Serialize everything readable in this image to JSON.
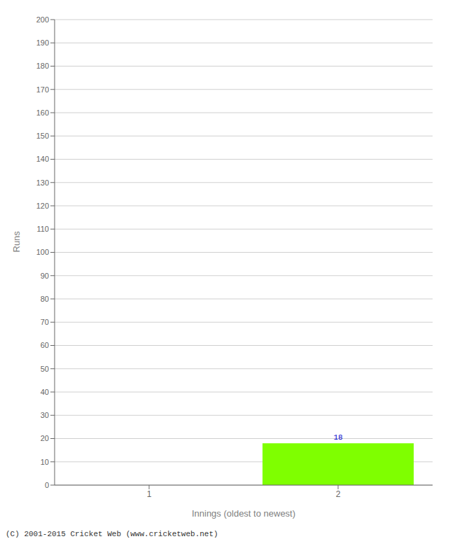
{
  "chart_data": {
    "type": "bar",
    "categories": [
      "1",
      "2"
    ],
    "values": [
      0,
      18
    ],
    "color": "#7fff00",
    "xlabel": "Innings (oldest to newest)",
    "ylabel": "Runs",
    "ylim": [
      0,
      200
    ],
    "yticks": [
      0,
      10,
      20,
      30,
      40,
      50,
      60,
      70,
      80,
      90,
      100,
      110,
      120,
      130,
      140,
      150,
      160,
      170,
      180,
      190,
      200
    ],
    "grid": true,
    "data_labels": true,
    "annotations": [
      "(C) 2001-2015 Cricket Web (www.cricketweb.net)"
    ]
  }
}
